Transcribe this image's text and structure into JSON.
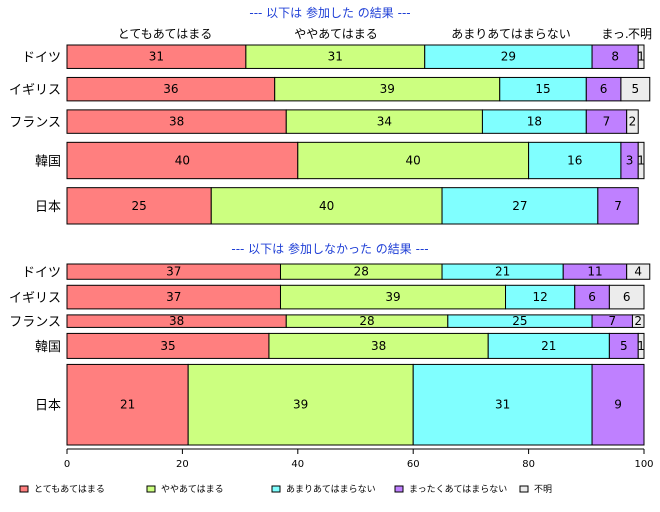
{
  "chart_data": {
    "type": "bar",
    "orientation": "horizontal",
    "stacked": true,
    "legend_position": "bottom",
    "grid": false,
    "xlim": [
      0,
      100
    ],
    "x_ticks": [
      0,
      20,
      40,
      60,
      80,
      100
    ],
    "series_names": [
      "とてもあてはまる",
      "ややあてはまる",
      "あまりあてはまらない",
      "まったくあてはまらない",
      "不明"
    ],
    "header_labels": [
      "とてもあてはまる",
      "ややあてはまる",
      "あまりあてはまらない",
      "まっ.",
      "不明"
    ],
    "colors": [
      "#ff7f7f",
      "#ccff80",
      "#80ffff",
      "#bf80ff",
      "#ececec"
    ],
    "panels": [
      {
        "title": "--- 以下は 参加した の結果 ---",
        "categories": [
          "ドイツ",
          "イギリス",
          "フランス",
          "韓国",
          "日本"
        ],
        "values": [
          [
            31,
            31,
            29,
            8,
            1
          ],
          [
            36,
            39,
            15,
            6,
            5
          ],
          [
            38,
            34,
            18,
            7,
            2
          ],
          [
            40,
            40,
            16,
            3,
            1
          ],
          [
            25,
            40,
            27,
            7,
            0
          ]
        ],
        "weights": [
          1,
          1,
          1,
          1.55,
          1.55
        ]
      },
      {
        "title": "--- 以下は 参加しなかった の結果 ---",
        "categories": [
          "ドイツ",
          "イギリス",
          "フランス",
          "韓国",
          "日本"
        ],
        "values": [
          [
            37,
            28,
            21,
            11,
            4
          ],
          [
            37,
            39,
            12,
            6,
            6
          ],
          [
            38,
            28,
            25,
            7,
            2
          ],
          [
            35,
            38,
            21,
            5,
            1
          ],
          [
            21,
            39,
            31,
            9,
            0
          ]
        ],
        "weights": [
          0.55,
          0.85,
          0.45,
          0.9,
          2.9
        ]
      }
    ]
  }
}
